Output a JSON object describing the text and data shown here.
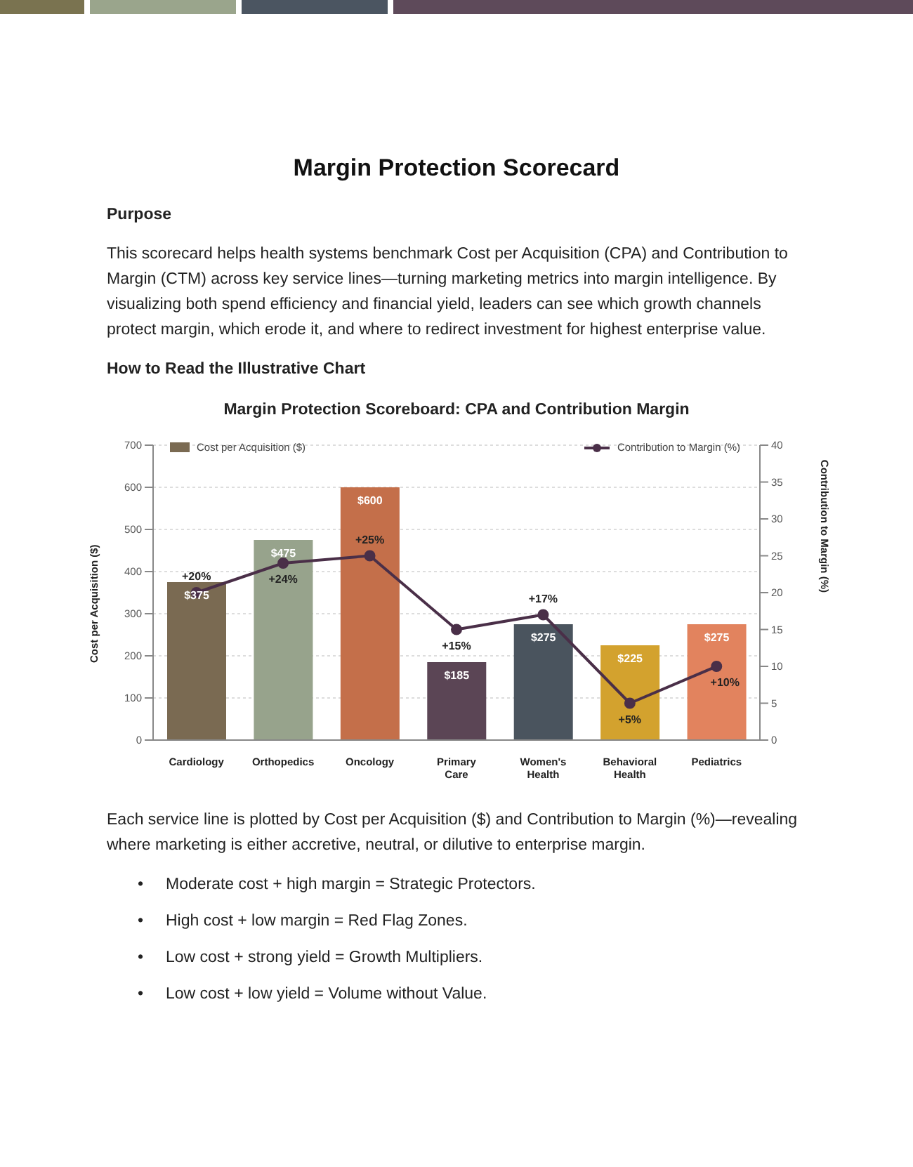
{
  "chart_data": {
    "type": "bar",
    "title": "Margin Protection Scoreboard: CPA and Contribution Margin",
    "annotations": [
      "Margin Protection Scorecard",
      "Purpose",
      "This scorecard helps health systems benchmark Cost per Acquisition (CPA) and Contribution to Margin (CTM) across key service lines—turning marketing metrics into margin intelligence. By visualizing both spend efficiency and financial yield, leaders can see which growth channels protect margin, which erode it, and where to redirect investment for highest enterprise value.",
      "How to Read the Illustrative Chart",
      "Each service line is plotted by Cost per Acquisition ($) and Contribution to Margin (%)—revealing where marketing is either accretive, neutral, or dilutive to enterprise margin.",
      "• Moderate cost + high margin = Strategic Protectors.",
      "• High cost + low margin = Red Flag Zones.",
      "• Low cost + strong yield = Growth Multipliers.",
      "• Low cost + low yield = Volume without Value."
    ],
    "categories": [
      "Cardiology",
      "Orthopedics",
      "Oncology",
      "Primary Care",
      "Women's Health",
      "Behavioral Health",
      "Pediatrics"
    ],
    "series": [
      {
        "name": "Cost per Acquisition ($)",
        "color": "#7a6a52",
        "colors": [
          "#7a6a52",
          "#97a38c",
          "#c46f4a",
          "#5b4555",
          "#4a545e",
          "#d3a22e",
          "#e2835e"
        ],
        "values": [
          375,
          475,
          600,
          185,
          275,
          225,
          275
        ],
        "value_labels": [
          "$375",
          "$475",
          "$600",
          "$185",
          "$275",
          "$225",
          "$275"
        ]
      },
      {
        "name": "Contribution to Margin (%)",
        "type": "line",
        "axis": "y2",
        "color": "#4a2f48",
        "marker": "circle",
        "values": [
          20,
          24,
          25,
          15,
          17,
          5,
          10
        ],
        "value_labels": [
          "+20%",
          "+24%",
          "+25%",
          "+15%",
          "+17%",
          "+5%",
          "+10%"
        ]
      }
    ],
    "ylabel": "Cost per Acquisition ($)",
    "y2label": "Contribution to Margin (%)",
    "ylim": [
      0,
      700
    ],
    "yticks": [
      0,
      100,
      200,
      300,
      400,
      500,
      600,
      700
    ],
    "y2lim": [
      0,
      40
    ],
    "y2ticks": [
      0,
      5,
      10,
      15,
      20,
      25,
      30,
      35,
      40
    ],
    "grid": "y",
    "legend": "top"
  }
}
